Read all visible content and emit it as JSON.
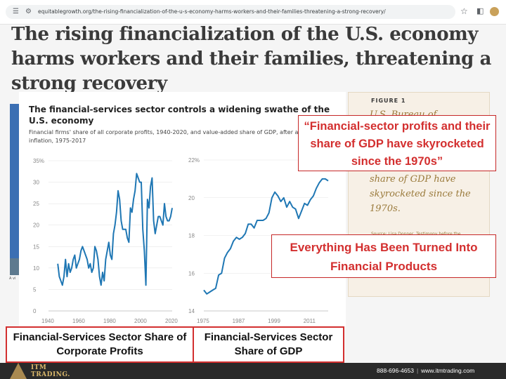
{
  "browser": {
    "url": "equitablegrowth.org/the-rising-financialization-of-the-u-s-economy-harms-workers-and-their-families-threatening-a-strong-recovery/"
  },
  "article": {
    "headline": "The rising financialization of the U.S. economy harms workers and their families, threatening a strong recovery",
    "caption_fragment": "A vi"
  },
  "figure_card": {
    "label": "FIGURE 1",
    "text_top": "U.S. Bureau of",
    "text_bottom": "share of GDP have skyrocketed since the 1970s.",
    "source": "Source: Lisa Donner, Testimony before the"
  },
  "panel": {
    "title": "The financial-services sector controls a widening swathe of the U.S. economy",
    "subtitle": "Financial firms' share of all corporate profits, 1940-2020, and value-added share of GDP, after accounting for inflation, 1975-2017"
  },
  "callouts": {
    "quote": "“Financial-sector profits and their share of GDP have skyrocketed since the 1970s”",
    "everything": "Everything Has Been Turned Into Financial Products"
  },
  "labels": {
    "left": "Financial-Services Sector Share of Corporate Profits",
    "right": "Financial-Services Sector Share of GDP"
  },
  "footer": {
    "brand_top": "ITM",
    "brand_bottom": "TRADING.",
    "phone": "888-696-4653",
    "website": "www.itmtrading.com"
  },
  "colors": {
    "line": "#1f77b4",
    "callout": "#d32f2f"
  },
  "chart_data": [
    {
      "type": "line",
      "title": "",
      "xlabel": "",
      "ylabel": "",
      "ylim": [
        0,
        35
      ],
      "xlim": [
        1940,
        2020
      ],
      "yticks": [
        "0",
        "5",
        "10",
        "15",
        "20",
        "25",
        "30",
        "35%"
      ],
      "xticks": [
        "1940",
        "1960",
        "1980",
        "2000",
        "2020"
      ],
      "x": [
        1946,
        1947,
        1948,
        1949,
        1950,
        1951,
        1952,
        1953,
        1954,
        1955,
        1956,
        1957,
        1958,
        1959,
        1960,
        1961,
        1962,
        1963,
        1964,
        1965,
        1966,
        1967,
        1968,
        1969,
        1970,
        1971,
        1972,
        1973,
        1974,
        1975,
        1976,
        1977,
        1978,
        1979,
        1980,
        1981,
        1982,
        1983,
        1984,
        1985,
        1986,
        1987,
        1988,
        1989,
        1990,
        1991,
        1992,
        1993,
        1994,
        1995,
        1996,
        1997,
        1998,
        1999,
        2000,
        2001,
        2002,
        2003,
        2004,
        2005,
        2006,
        2007,
        2008,
        2009,
        2010,
        2011,
        2012,
        2013,
        2014,
        2015,
        2016,
        2017,
        2018,
        2019,
        2020
      ],
      "values": [
        11,
        8,
        7,
        6,
        8,
        12,
        8,
        11,
        9,
        10,
        12,
        13,
        10,
        11,
        12,
        14,
        15,
        14,
        13,
        12,
        10,
        11,
        9,
        10,
        15,
        14,
        12,
        8,
        6,
        9,
        7,
        12,
        14,
        16,
        13,
        12,
        18,
        20,
        23,
        28,
        26,
        21,
        19,
        19,
        19,
        17,
        16,
        24,
        23,
        26,
        28,
        32,
        31,
        30,
        30,
        19,
        14,
        6,
        26,
        24,
        29,
        31,
        21,
        18,
        20,
        22,
        22,
        21,
        20,
        25,
        22,
        21,
        21,
        22,
        24
      ]
    },
    {
      "type": "line",
      "title": "",
      "xlabel": "",
      "ylabel": "",
      "ylim": [
        14,
        22
      ],
      "xlim": [
        1975,
        2017
      ],
      "yticks": [
        "14",
        "16",
        "18",
        "20",
        "22%"
      ],
      "xticks": [
        "1975",
        "1987",
        "1999",
        "2011"
      ],
      "x": [
        1975,
        1976,
        1977,
        1978,
        1979,
        1980,
        1981,
        1982,
        1983,
        1984,
        1985,
        1986,
        1987,
        1988,
        1989,
        1990,
        1991,
        1992,
        1993,
        1994,
        1995,
        1996,
        1997,
        1998,
        1999,
        2000,
        2001,
        2002,
        2003,
        2004,
        2005,
        2006,
        2007,
        2008,
        2009,
        2010,
        2011,
        2012,
        2013,
        2014,
        2015,
        2016,
        2017
      ],
      "values": [
        15.1,
        14.9,
        15.0,
        15.1,
        15.2,
        15.9,
        16.0,
        16.8,
        17.1,
        17.3,
        17.7,
        17.9,
        17.8,
        17.9,
        18.1,
        18.6,
        18.6,
        18.4,
        18.8,
        18.8,
        18.8,
        18.9,
        19.2,
        20.0,
        20.3,
        20.1,
        19.8,
        20.0,
        19.5,
        19.8,
        19.5,
        19.4,
        18.9,
        19.3,
        19.7,
        19.6,
        19.9,
        20.1,
        20.5,
        20.8,
        21.0,
        21.0,
        20.9
      ]
    }
  ]
}
